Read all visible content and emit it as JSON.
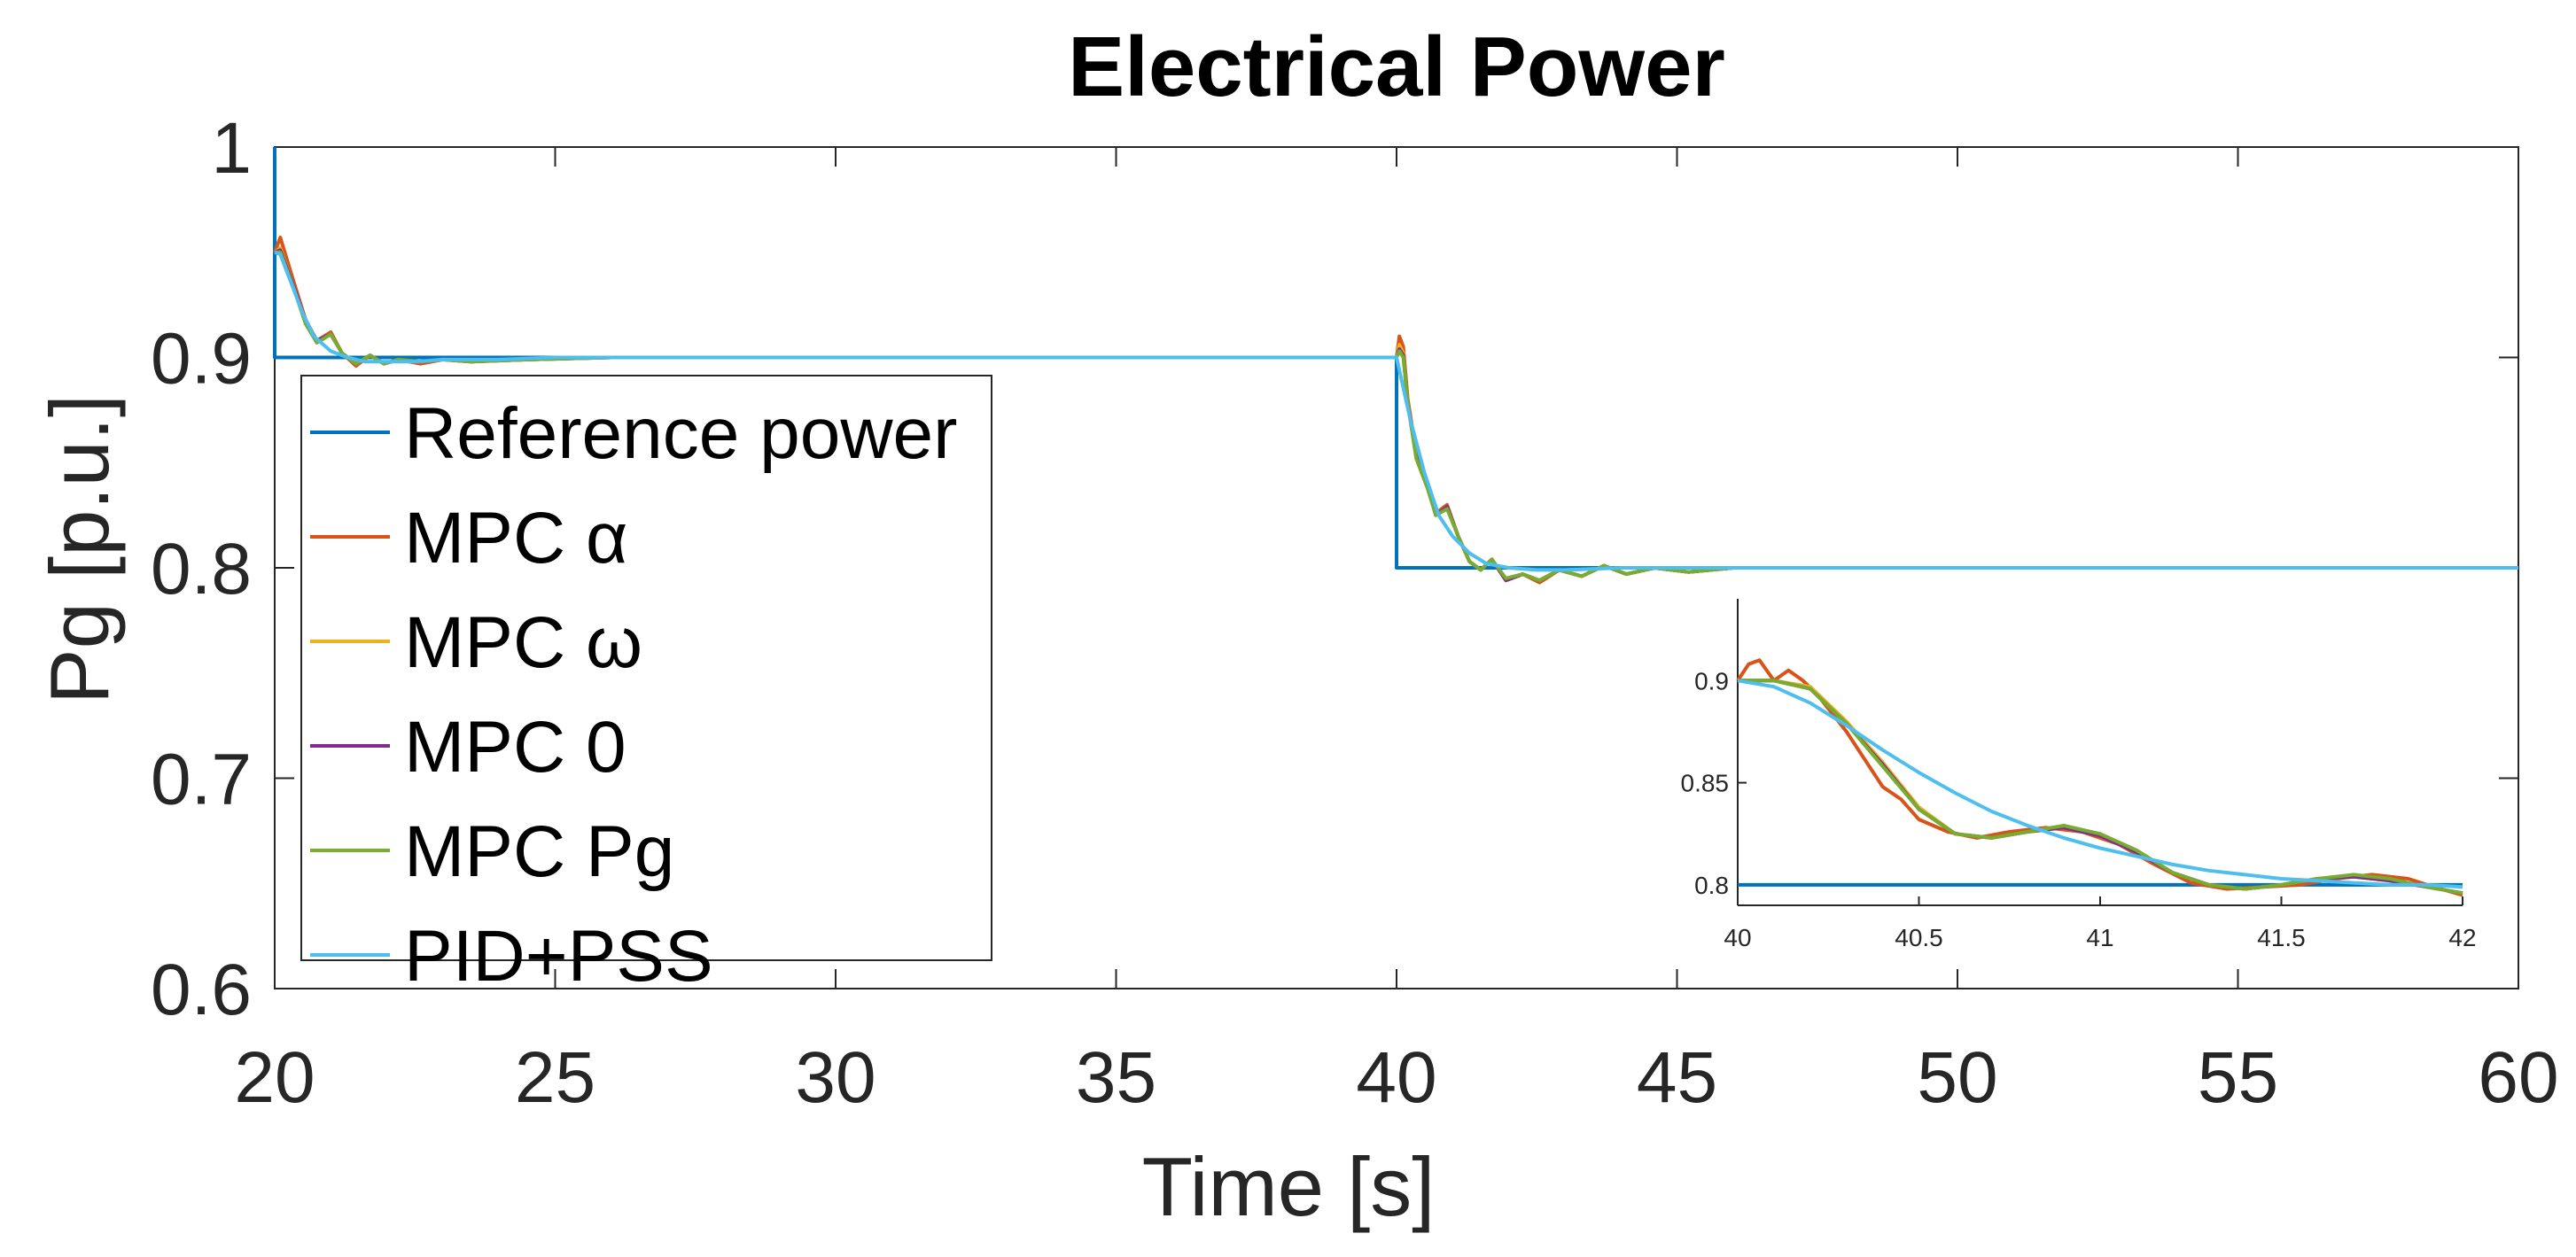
{
  "chart_data": [
    {
      "type": "line",
      "title": "Electrical Power",
      "xlabel": "Time [s]",
      "ylabel": "Pg [p.u.]",
      "xlim": [
        20,
        60
      ],
      "ylim": [
        0.6,
        1
      ],
      "xticks": [
        20,
        25,
        30,
        35,
        40,
        45,
        50,
        55,
        60
      ],
      "xtick_labels": [
        "20",
        "25",
        "30",
        "35",
        "40",
        "45",
        "50",
        "55",
        "60"
      ],
      "yticks": [
        0.6,
        0.7,
        0.8,
        0.9,
        1
      ],
      "ytick_labels": [
        "0.6",
        "0.7",
        "0.8",
        "0.9",
        "1"
      ],
      "grid": false,
      "legend_position": "left",
      "legend": [
        "Reference power",
        "MPC α",
        "MPC ω",
        "MPC 0",
        "MPC Pg",
        "PID+PSS"
      ],
      "series": [
        {
          "name": "Reference power",
          "color": "#0072BD",
          "x": [
            20,
            20,
            40,
            40,
            60
          ],
          "y": [
            1.0,
            0.9,
            0.9,
            0.8,
            0.8
          ]
        },
        {
          "name": "MPC α",
          "color": "#D95319",
          "x": [
            20,
            20.1,
            20.35,
            20.55,
            20.75,
            21.0,
            21.2,
            21.45,
            21.7,
            21.95,
            22.2,
            22.6,
            23.0,
            23.5,
            24.5,
            26,
            28,
            40,
            40.05,
            40.12,
            40.2,
            40.35,
            40.55,
            40.7,
            40.9,
            41.1,
            41.3,
            41.5,
            41.7,
            41.95,
            42.25,
            42.55,
            42.9,
            43.3,
            43.7,
            44.1,
            44.6,
            45.2,
            46.0,
            47.5,
            50
          ],
          "y": [
            0.95,
            0.957,
            0.935,
            0.918,
            0.908,
            0.912,
            0.902,
            0.896,
            0.901,
            0.897,
            0.899,
            0.897,
            0.899,
            0.898,
            0.899,
            0.9,
            0.9,
            0.9,
            0.91,
            0.905,
            0.88,
            0.855,
            0.84,
            0.826,
            0.83,
            0.815,
            0.803,
            0.799,
            0.804,
            0.794,
            0.797,
            0.793,
            0.799,
            0.796,
            0.801,
            0.797,
            0.8,
            0.798,
            0.8,
            0.8,
            0.8
          ]
        },
        {
          "name": "MPC ω",
          "color": "#EDB120",
          "x": [
            20,
            20.1,
            20.35,
            20.55,
            20.75,
            21.0,
            21.2,
            21.45,
            21.7,
            21.95,
            22.2,
            22.6,
            23.0,
            23.5,
            24.5,
            26,
            28,
            40,
            40.05,
            40.12,
            40.2,
            40.35,
            40.55,
            40.7,
            40.9,
            41.1,
            41.3,
            41.5,
            41.7,
            41.95,
            42.25,
            42.55,
            42.9,
            43.3,
            43.7,
            44.1,
            44.6,
            45.2,
            46.0,
            47.5,
            50
          ],
          "y": [
            0.95,
            0.952,
            0.933,
            0.917,
            0.908,
            0.911,
            0.902,
            0.897,
            0.901,
            0.897,
            0.899,
            0.898,
            0.899,
            0.898,
            0.899,
            0.9,
            0.9,
            0.9,
            0.906,
            0.902,
            0.878,
            0.853,
            0.839,
            0.825,
            0.829,
            0.815,
            0.803,
            0.799,
            0.804,
            0.794,
            0.797,
            0.794,
            0.799,
            0.796,
            0.801,
            0.797,
            0.8,
            0.798,
            0.8,
            0.8,
            0.8
          ]
        },
        {
          "name": "MPC 0",
          "color": "#7E2F8E",
          "x": [
            20,
            20.1,
            20.35,
            20.55,
            20.75,
            21.0,
            21.2,
            21.45,
            21.7,
            21.95,
            22.2,
            22.6,
            23.0,
            23.5,
            24.5,
            26,
            28,
            40,
            40.05,
            40.12,
            40.2,
            40.35,
            40.55,
            40.7,
            40.9,
            41.1,
            41.3,
            41.5,
            41.7,
            41.95,
            42.25,
            42.55,
            42.9,
            43.3,
            43.7,
            44.1,
            44.6,
            45.2,
            46.0,
            47.5,
            50
          ],
          "y": [
            0.95,
            0.951,
            0.933,
            0.917,
            0.908,
            0.911,
            0.902,
            0.897,
            0.901,
            0.897,
            0.899,
            0.898,
            0.899,
            0.898,
            0.899,
            0.9,
            0.9,
            0.9,
            0.904,
            0.901,
            0.878,
            0.853,
            0.839,
            0.825,
            0.829,
            0.815,
            0.803,
            0.799,
            0.804,
            0.794,
            0.797,
            0.794,
            0.799,
            0.796,
            0.801,
            0.797,
            0.8,
            0.798,
            0.8,
            0.8,
            0.8
          ]
        },
        {
          "name": "MPC Pg",
          "color": "#77AC30",
          "x": [
            20,
            20.1,
            20.35,
            20.55,
            20.75,
            21.0,
            21.2,
            21.45,
            21.7,
            21.95,
            22.2,
            22.6,
            23.0,
            23.5,
            24.5,
            26,
            28,
            40,
            40.05,
            40.12,
            40.2,
            40.35,
            40.55,
            40.7,
            40.9,
            41.1,
            41.3,
            41.5,
            41.7,
            41.95,
            42.25,
            42.55,
            42.9,
            43.3,
            43.7,
            44.1,
            44.6,
            45.2,
            46.0,
            47.5,
            50
          ],
          "y": [
            0.95,
            0.95,
            0.932,
            0.916,
            0.907,
            0.911,
            0.902,
            0.897,
            0.901,
            0.897,
            0.899,
            0.898,
            0.899,
            0.898,
            0.899,
            0.9,
            0.9,
            0.9,
            0.903,
            0.9,
            0.878,
            0.852,
            0.838,
            0.825,
            0.828,
            0.815,
            0.803,
            0.799,
            0.804,
            0.795,
            0.797,
            0.794,
            0.799,
            0.796,
            0.801,
            0.797,
            0.8,
            0.798,
            0.8,
            0.8,
            0.8
          ]
        },
        {
          "name": "PID+PSS",
          "color": "#4DBEEE",
          "x": [
            20,
            20.1,
            20.3,
            20.5,
            20.7,
            21.0,
            21.3,
            21.6,
            22.0,
            22.5,
            23.0,
            24.0,
            25.0,
            26.0,
            28.0,
            30,
            40,
            40.25,
            40.5,
            40.75,
            41.0,
            41.3,
            41.6,
            42.0,
            42.5,
            43.0,
            44.0,
            45.0,
            46.0,
            48.0,
            50,
            60
          ],
          "y": [
            0.95,
            0.949,
            0.935,
            0.921,
            0.91,
            0.903,
            0.9,
            0.898,
            0.898,
            0.898,
            0.899,
            0.899,
            0.9,
            0.9,
            0.9,
            0.9,
            0.9,
            0.87,
            0.845,
            0.825,
            0.815,
            0.807,
            0.802,
            0.8,
            0.799,
            0.799,
            0.8,
            0.8,
            0.8,
            0.8,
            0.8,
            0.8
          ]
        }
      ]
    },
    {
      "type": "line",
      "title": "",
      "xlabel": "",
      "ylabel": "",
      "inset": true,
      "xlim": [
        40,
        42
      ],
      "ylim": [
        0.79,
        0.94
      ],
      "xticks": [
        40,
        40.5,
        41,
        41.5,
        42
      ],
      "xtick_labels": [
        "40",
        "40.5",
        "41",
        "41.5",
        "42"
      ],
      "yticks": [
        0.8,
        0.85,
        0.9
      ],
      "ytick_labels": [
        "0.8",
        "0.85",
        "0.9"
      ],
      "grid": false,
      "series": [
        {
          "name": "Reference power",
          "color": "#0072BD",
          "x": [
            40,
            42
          ],
          "y": [
            0.8,
            0.8
          ]
        },
        {
          "name": "MPC α",
          "color": "#D95319",
          "x": [
            40,
            40.03,
            40.06,
            40.1,
            40.14,
            40.18,
            40.22,
            40.3,
            40.4,
            40.45,
            40.5,
            40.58,
            40.66,
            40.75,
            40.85,
            40.95,
            41.05,
            41.15,
            41.25,
            41.35,
            41.45,
            41.55,
            41.65,
            41.75,
            41.85,
            41.92,
            42
          ],
          "y": [
            0.9,
            0.908,
            0.91,
            0.9,
            0.905,
            0.9,
            0.893,
            0.875,
            0.848,
            0.842,
            0.832,
            0.826,
            0.823,
            0.826,
            0.828,
            0.826,
            0.82,
            0.81,
            0.801,
            0.798,
            0.799,
            0.8,
            0.803,
            0.805,
            0.803,
            0.799,
            0.795
          ]
        },
        {
          "name": "MPC ω",
          "color": "#EDB120",
          "x": [
            40,
            40.1,
            40.2,
            40.3,
            40.4,
            40.5,
            40.6,
            40.7,
            40.8,
            40.9,
            41.0,
            41.1,
            41.2,
            41.3,
            41.4,
            41.5,
            41.6,
            41.7,
            41.8,
            41.9,
            42
          ],
          "y": [
            0.9,
            0.9,
            0.897,
            0.88,
            0.86,
            0.838,
            0.825,
            0.823,
            0.826,
            0.828,
            0.824,
            0.816,
            0.806,
            0.8,
            0.798,
            0.8,
            0.803,
            0.804,
            0.802,
            0.799,
            0.796
          ]
        },
        {
          "name": "MPC 0",
          "color": "#7E2F8E",
          "x": [
            40,
            40.1,
            40.2,
            40.3,
            40.4,
            40.5,
            40.6,
            40.7,
            40.8,
            40.9,
            41.0,
            41.1,
            41.2,
            41.3,
            41.4,
            41.5,
            41.6,
            41.7,
            41.8,
            41.9,
            42
          ],
          "y": [
            0.9,
            0.9,
            0.896,
            0.879,
            0.859,
            0.837,
            0.825,
            0.823,
            0.826,
            0.828,
            0.824,
            0.816,
            0.806,
            0.8,
            0.798,
            0.8,
            0.803,
            0.804,
            0.802,
            0.799,
            0.796
          ]
        },
        {
          "name": "MPC Pg",
          "color": "#77AC30",
          "x": [
            40,
            40.1,
            40.2,
            40.3,
            40.4,
            40.5,
            40.6,
            40.7,
            40.8,
            40.9,
            41.0,
            41.1,
            41.2,
            41.3,
            41.4,
            41.5,
            41.6,
            41.7,
            41.8,
            41.9,
            42
          ],
          "y": [
            0.9,
            0.9,
            0.896,
            0.879,
            0.858,
            0.837,
            0.825,
            0.823,
            0.826,
            0.829,
            0.825,
            0.817,
            0.806,
            0.8,
            0.798,
            0.8,
            0.803,
            0.805,
            0.803,
            0.799,
            0.796
          ]
        },
        {
          "name": "PID+PSS",
          "color": "#4DBEEE",
          "x": [
            40,
            40.1,
            40.2,
            40.3,
            40.4,
            40.5,
            40.6,
            40.7,
            40.8,
            40.9,
            41.0,
            41.1,
            41.2,
            41.3,
            41.4,
            41.5,
            41.6,
            41.7,
            41.8,
            41.9,
            42
          ],
          "y": [
            0.9,
            0.897,
            0.889,
            0.878,
            0.866,
            0.855,
            0.845,
            0.836,
            0.829,
            0.823,
            0.818,
            0.814,
            0.81,
            0.807,
            0.805,
            0.803,
            0.802,
            0.801,
            0.8,
            0.8,
            0.799
          ]
        }
      ]
    }
  ]
}
